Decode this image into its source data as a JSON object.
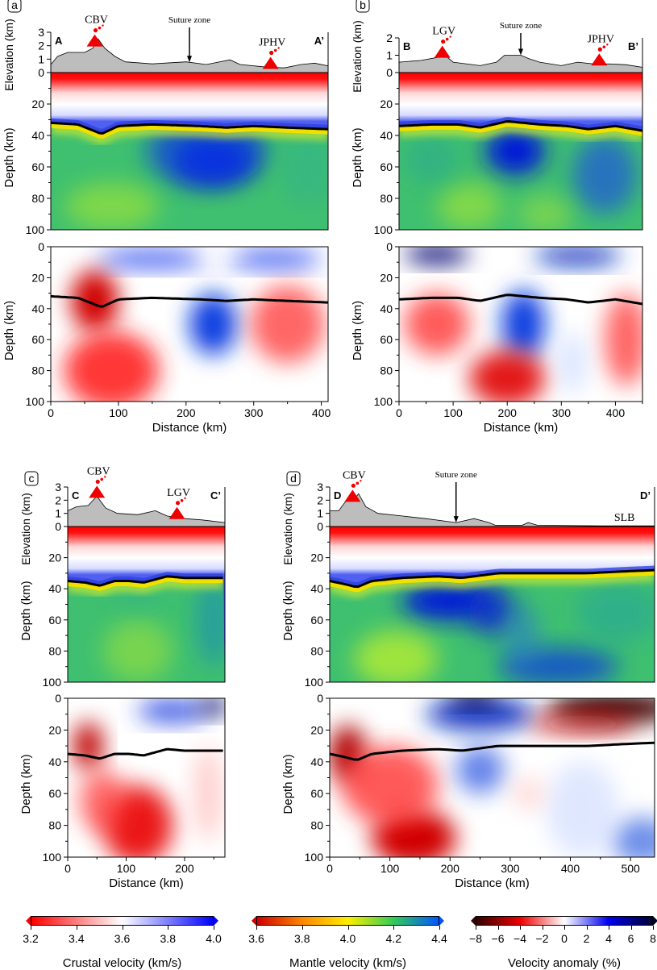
{
  "axis_labels": {
    "elevation": "Elevation (km)",
    "depth": "Depth (km)",
    "distance": "Distance (km)"
  },
  "chart_data": [
    {
      "type": "heatmap",
      "panel": "a",
      "start_label": "A",
      "end_label": "A’",
      "xlim": [
        0,
        410
      ],
      "x_ticks": [
        0,
        100,
        200,
        300,
        400
      ],
      "elevation_lim": [
        0,
        3
      ],
      "elevation_ticks": [
        0,
        1,
        2,
        3
      ],
      "depth_lim": [
        0,
        100
      ],
      "depth_ticks": [
        0,
        20,
        40,
        60,
        80,
        100
      ],
      "volcanoes": [
        {
          "name": "CBV",
          "distance": 65
        },
        {
          "name": "JPHV",
          "distance": 325
        }
      ],
      "suture": {
        "label": "Suture zone",
        "distance": 205
      },
      "topography": [
        [
          0,
          0.6
        ],
        [
          10,
          1.2
        ],
        [
          25,
          1.5
        ],
        [
          50,
          1.5
        ],
        [
          62,
          1.8
        ],
        [
          70,
          2.5
        ],
        [
          80,
          1.8
        ],
        [
          95,
          1.2
        ],
        [
          110,
          0.8
        ],
        [
          150,
          0.65
        ],
        [
          200,
          0.8
        ],
        [
          230,
          0.6
        ],
        [
          265,
          0.95
        ],
        [
          280,
          0.6
        ],
        [
          320,
          0.4
        ],
        [
          345,
          0.35
        ],
        [
          370,
          0.6
        ],
        [
          390,
          0.7
        ],
        [
          410,
          0.5
        ]
      ],
      "moho_depth": [
        [
          0,
          32
        ],
        [
          40,
          33
        ],
        [
          75,
          39
        ],
        [
          100,
          34
        ],
        [
          150,
          33
        ],
        [
          220,
          34
        ],
        [
          260,
          35
        ],
        [
          300,
          34
        ],
        [
          350,
          35
        ],
        [
          410,
          36
        ]
      ]
    },
    {
      "type": "heatmap",
      "panel": "b",
      "start_label": "B",
      "end_label": "B’",
      "xlim": [
        0,
        450
      ],
      "x_ticks": [
        0,
        100,
        200,
        300,
        400
      ],
      "elevation_lim": [
        0,
        2
      ],
      "elevation_ticks": [
        0,
        1,
        2
      ],
      "depth_lim": [
        0,
        100
      ],
      "depth_ticks": [
        0,
        20,
        40,
        60,
        80,
        100
      ],
      "volcanoes": [
        {
          "name": "LGV",
          "distance": 80
        },
        {
          "name": "JPHV",
          "distance": 370
        }
      ],
      "suture": {
        "label": "Suture zone",
        "distance": 225
      },
      "topography": [
        [
          0,
          0.6
        ],
        [
          40,
          0.7
        ],
        [
          75,
          0.9
        ],
        [
          85,
          1.0
        ],
        [
          100,
          0.6
        ],
        [
          150,
          0.4
        ],
        [
          180,
          0.6
        ],
        [
          195,
          1.0
        ],
        [
          225,
          1.0
        ],
        [
          240,
          0.8
        ],
        [
          260,
          0.6
        ],
        [
          300,
          0.4
        ],
        [
          330,
          0.6
        ],
        [
          360,
          0.5
        ],
        [
          390,
          0.5
        ],
        [
          420,
          0.45
        ],
        [
          450,
          0.3
        ]
      ],
      "moho_depth": [
        [
          0,
          34
        ],
        [
          60,
          33
        ],
        [
          110,
          33
        ],
        [
          150,
          35
        ],
        [
          200,
          31
        ],
        [
          260,
          33
        ],
        [
          310,
          34
        ],
        [
          350,
          36
        ],
        [
          400,
          34
        ],
        [
          450,
          37
        ]
      ]
    },
    {
      "type": "heatmap",
      "panel": "c",
      "start_label": "C",
      "end_label": "C’",
      "xlim": [
        0,
        269
      ],
      "x_ticks": [
        0,
        100,
        200
      ],
      "elevation_lim": [
        0,
        3
      ],
      "elevation_ticks": [
        0,
        1,
        2,
        3
      ],
      "depth_lim": [
        0,
        100
      ],
      "depth_ticks": [
        0,
        20,
        40,
        60,
        80,
        100
      ],
      "volcanoes": [
        {
          "name": "CBV",
          "distance": 50
        },
        {
          "name": "LGV",
          "distance": 187
        }
      ],
      "topography": [
        [
          0,
          1.2
        ],
        [
          15,
          1.5
        ],
        [
          35,
          1.6
        ],
        [
          50,
          2.3
        ],
        [
          65,
          1.4
        ],
        [
          85,
          1.0
        ],
        [
          120,
          0.9
        ],
        [
          150,
          1.2
        ],
        [
          170,
          0.8
        ],
        [
          200,
          0.6
        ],
        [
          230,
          0.5
        ],
        [
          269,
          0.3
        ]
      ],
      "moho_depth": [
        [
          0,
          35
        ],
        [
          30,
          36
        ],
        [
          55,
          38
        ],
        [
          80,
          35
        ],
        [
          105,
          35
        ],
        [
          130,
          36
        ],
        [
          170,
          32
        ],
        [
          200,
          33
        ],
        [
          269,
          33
        ]
      ]
    },
    {
      "type": "heatmap",
      "panel": "d",
      "start_label": "D",
      "end_label": "D’",
      "xlim": [
        0,
        540
      ],
      "x_ticks": [
        0,
        100,
        200,
        300,
        400,
        500
      ],
      "elevation_lim": [
        0,
        3
      ],
      "elevation_ticks": [
        0,
        1,
        2,
        3
      ],
      "depth_lim": [
        0,
        100
      ],
      "depth_ticks": [
        0,
        20,
        40,
        60,
        80,
        100
      ],
      "volcanoes": [
        {
          "name": "CBV",
          "distance": 38
        }
      ],
      "suture": {
        "label": "Suture zone",
        "distance": 210
      },
      "region_label": {
        "label": "SLB",
        "distance": 490
      },
      "topography": [
        [
          0,
          1.2
        ],
        [
          15,
          1.2
        ],
        [
          28,
          2.0
        ],
        [
          40,
          2.0
        ],
        [
          48,
          2.5
        ],
        [
          60,
          1.5
        ],
        [
          80,
          1.0
        ],
        [
          120,
          0.8
        ],
        [
          160,
          0.6
        ],
        [
          210,
          0.3
        ],
        [
          240,
          0.6
        ],
        [
          265,
          0.3
        ],
        [
          275,
          0.1
        ],
        [
          320,
          0.1
        ],
        [
          330,
          0.3
        ],
        [
          345,
          0.1
        ],
        [
          450,
          0.05
        ],
        [
          540,
          0.05
        ]
      ],
      "moho_depth": [
        [
          0,
          35
        ],
        [
          25,
          37
        ],
        [
          45,
          39
        ],
        [
          70,
          35
        ],
        [
          120,
          33
        ],
        [
          180,
          32
        ],
        [
          220,
          33
        ],
        [
          280,
          30
        ],
        [
          350,
          30
        ],
        [
          430,
          30
        ],
        [
          480,
          29
        ],
        [
          540,
          28
        ]
      ]
    }
  ],
  "colorbars": [
    {
      "title": "Crustal velocity (km/s)",
      "ticks": [
        "3.2",
        "3.4",
        "3.6",
        "3.8",
        "4.0"
      ],
      "colors": [
        "#ff0000",
        "#ffffff",
        "#0000ff"
      ]
    },
    {
      "title": "Mantle velocity (km/s)",
      "ticks": [
        "3.6",
        "3.8",
        "4.0",
        "4.2",
        "4.4"
      ],
      "colors": [
        "#cc0000",
        "#ff8800",
        "#ffee00",
        "#33cc55",
        "#0055ff"
      ]
    },
    {
      "title": "Velocity anomaly (%)",
      "ticks": [
        "−8",
        "−6",
        "−4",
        "−2",
        "0",
        "2",
        "4",
        "6",
        "8"
      ],
      "colors": [
        "#330000",
        "#ee0000",
        "#ffffff",
        "#0000ee",
        "#000033"
      ]
    }
  ]
}
